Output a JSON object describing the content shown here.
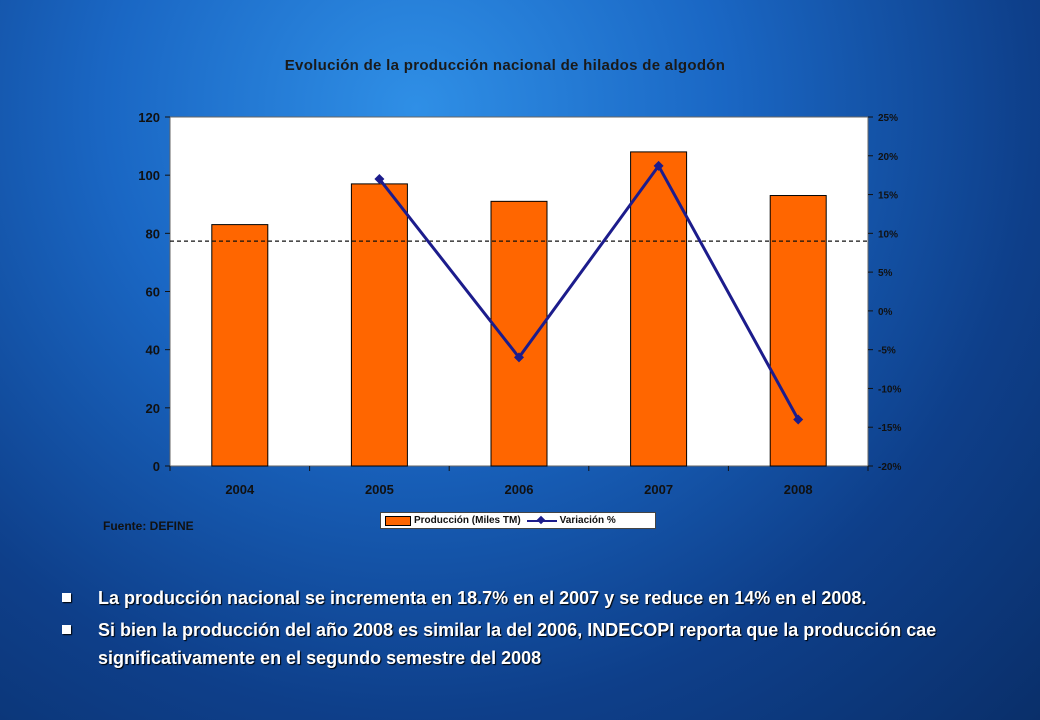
{
  "chart_data": {
    "type": "bar",
    "title": "Evolución de la producción nacional de hilados de algodón",
    "categories": [
      "2004",
      "2005",
      "2006",
      "2007",
      "2008"
    ],
    "series": [
      {
        "name": "Producción (Miles TM)",
        "type": "bar",
        "axis": "left",
        "values": [
          83,
          97,
          91,
          108,
          93
        ]
      },
      {
        "name": "Variación %",
        "type": "line",
        "axis": "right",
        "values": [
          null,
          17,
          -6,
          18.7,
          -14
        ]
      }
    ],
    "ylim": [
      0,
      120
    ],
    "yticks": [
      "0",
      "20",
      "40",
      "60",
      "80",
      "100",
      "120"
    ],
    "y2lim": [
      -20,
      25
    ],
    "y2ticks": [
      "-20%",
      "-15%",
      "-10%",
      "-5%",
      "0%",
      "5%",
      "10%",
      "15%",
      "20%",
      "25%"
    ],
    "reference_line_y2": 9,
    "legend_position": "bottom",
    "colors": {
      "bar": "#ff6600",
      "line": "#1c1c8c",
      "plot_bg": "#ffffff"
    }
  },
  "source_text": "Fuente: DEFINE",
  "bullets": [
    "La producción nacional se incrementa en 18.7% en el 2007 y se reduce en 14% en el 2008.",
    "Si bien la producción del año 2008 es similar la del 2006, INDECOPI reporta que la producción cae significativamente en el segundo semestre del 2008"
  ]
}
